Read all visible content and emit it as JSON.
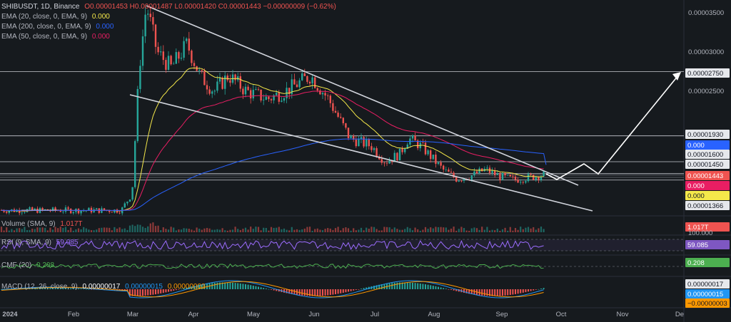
{
  "header": {
    "symbol": "SHIBUSDT, 1D, Binance",
    "ohlc": "O0.00001453 H0.00001487 L0.00001420 C0.00001443 −0.00000009 (−0.62%)"
  },
  "indicators": [
    {
      "label": "EMA (20, close, 0, EMA, 9)",
      "value": "0.000",
      "color": "#f5e84a"
    },
    {
      "label": "EMA (200, close, 0, EMA, 9)",
      "value": "0.000",
      "color": "#2962ff"
    },
    {
      "label": "EMA (50, close, 0, EMA, 9)",
      "value": "0.000",
      "color": "#e91e63"
    }
  ],
  "panes": {
    "volume": {
      "label": "Volume (SMA, 9)",
      "value": "1.017T",
      "value_color": "#ef5350"
    },
    "rsi": {
      "label": "RSI (9, SMA, 9)",
      "value": "59.085",
      "value_color": "#9c6cff"
    },
    "cmf": {
      "label": "CMF (20)",
      "value": "0.208",
      "value_color": "#4caf50"
    },
    "macd": {
      "label": "MACD (12, 26, close, 9)",
      "value": "0.00000017",
      "value2": "0.00000015",
      "value3": "0.00000003"
    }
  },
  "colors": {
    "up": "#26a69a",
    "down": "#ef5350",
    "ema20": "#f5e84a",
    "ema50": "#e91e63",
    "ema200": "#2962ff",
    "rsi": "#9c6cff",
    "cmf": "#4caf50",
    "macd": "#2196f3",
    "signal": "#ff9800",
    "background": "#161a1e"
  },
  "chart_data": {
    "type": "candlestick",
    "x_ticks": [
      "2024",
      "Feb",
      "Mar",
      "Apr",
      "May",
      "Jun",
      "Jul",
      "Aug",
      "Sep",
      "Oct",
      "Nov",
      "De"
    ],
    "y_ticks": [
      "0.00003500",
      "0.00003000",
      "0.00002500"
    ],
    "ylim": [
      1e-05,
      3.8e-05
    ],
    "price_levels": [
      "0.00002750",
      "0.00001930",
      "0.00001600",
      "0.00001450",
      "0.00001366"
    ],
    "right_tags": [
      {
        "text": "0.00002750",
        "bg": "#e6e8ec",
        "fg": "#131722"
      },
      {
        "text": "0.00001930",
        "bg": "#e6e8ec",
        "fg": "#131722"
      },
      {
        "text": "0.000",
        "bg": "#2962ff",
        "fg": "#ffffff"
      },
      {
        "text": "0.00001600",
        "bg": "#e6e8ec",
        "fg": "#131722"
      },
      {
        "text": "0.00001450",
        "bg": "#e6e8ec",
        "fg": "#131722"
      },
      {
        "text": "0.00001443",
        "bg": "#ef5350",
        "fg": "#ffffff"
      },
      {
        "text": "0.000",
        "bg": "#e91e63",
        "fg": "#ffffff"
      },
      {
        "text": "0.000",
        "bg": "#f5e84a",
        "fg": "#131722"
      },
      {
        "text": "0.00001366",
        "bg": "#e6e8ec",
        "fg": "#131722"
      }
    ],
    "rsi_level": "100.000"
  }
}
